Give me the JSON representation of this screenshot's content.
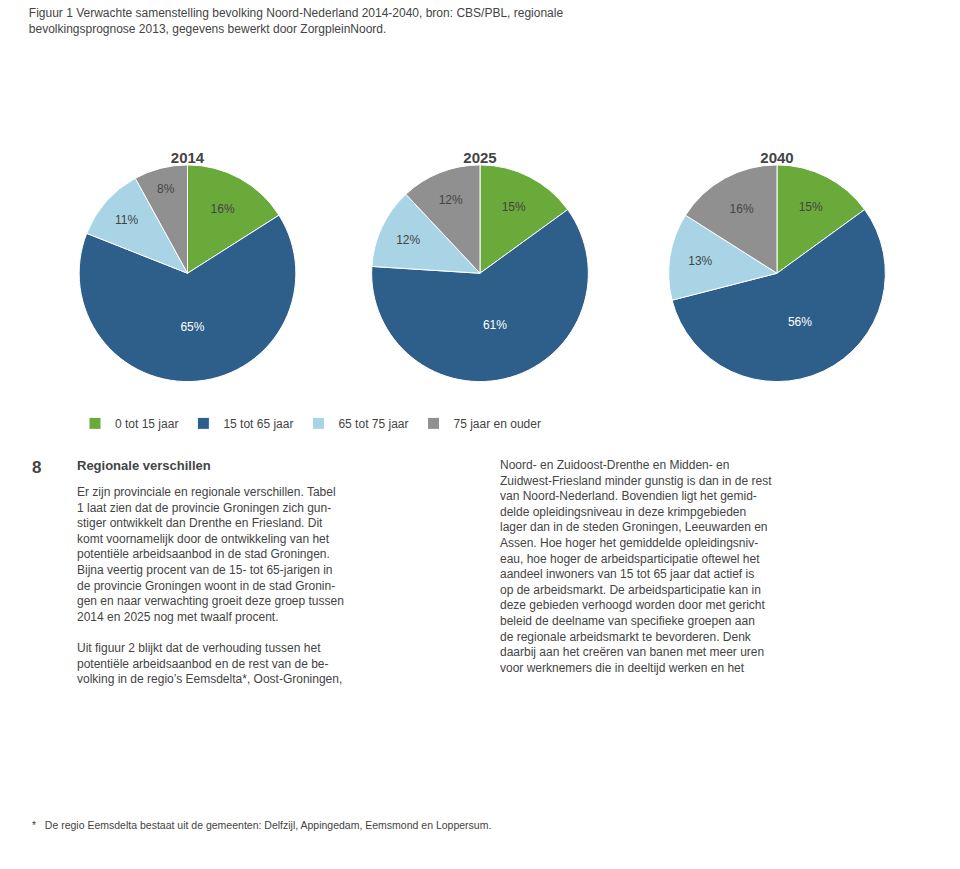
{
  "title": "Figuur 1",
  "subtitle": "Verwachte samenstelling bevolking Noord-Nederland 2014-2040, bron: CBS/PBL, regionale\nbevolkingsprognose 2013, gegevens bewerkt door ZorgpleinNoord.",
  "annotations": [
    "8",
    "Regionale verschillen",
    "Er zijn provinciale en regionale verschillen. Tabel\n1 laat zien dat de provincie Groningen zich gun-\nstiger ontwikkelt dan Drenthe en Friesland. Dit\nkomt voornamelijk door de ontwikkeling van het\npotentiële arbeidsaanbod in de stad Groningen.\nBijna veertig procent van de 15- tot 65-jarigen in\nde provincie Groningen woont in de stad Gronin-\ngen en naar verwachting groeit deze groep tussen\n2014 en 2025 nog met twaalf procent.\n\nUit figuur 2 blijkt dat de verhouding tussen het\npotentiële arbeidsaanbod en de rest van de be-\nvolking in de regio’s Eemsdelta*, Oost-Groningen,",
    "Noord- en Zuidoost-Drenthe en Midden- en\nZuidwest-Friesland minder gunstig is dan in de rest\nvan Noord-Nederland. Bovendien ligt het gemid-\ndelde opleidingsniveau in deze krimpgebieden\nlager dan in de steden Groningen, Leeuwarden en\nAssen. Hoe hoger het gemiddelde opleidingsniv-\neau, hoe hoger de arbeidsparticipatie oftewel het\naandeel inwoners van 15 tot 65 jaar dat actief is\nop de arbeidsmarkt. De arbeidsparticipatie kan in\ndeze gebieden verhoogd worden door met gericht\nbeleid de deelname van specifieke groepen aan\nde regionale arbeidsmarkt te bevorderen. Denk\ndaarbij aan het creëren van banen met meer uren\nvoor werknemers die in deeltijd werken en het",
    "*   De regio Eemsdelta bestaat uit de gemeenten: Delfzijl, Appingedam, Eemsmond en Loppersum."
  ],
  "chart_data": [
    {
      "type": "pie",
      "title": "2014",
      "categories": [
        "0 tot 15 jaar",
        "15 tot 65 jaar",
        "65 tot 75 jaar",
        "75 jaar en ouder"
      ],
      "values": [
        16,
        65,
        11,
        8
      ],
      "value_labels": [
        "16%",
        "65%",
        "11%",
        "8%"
      ],
      "colors": [
        "#6aaa3a",
        "#2e5f8a",
        "#a8d4e6",
        "#909090"
      ],
      "data_labels": true,
      "legend": "bottom"
    },
    {
      "type": "pie",
      "title": "2025",
      "categories": [
        "0 tot 15 jaar",
        "15 tot 65 jaar",
        "65 tot 75 jaar",
        "75 jaar en ouder"
      ],
      "values": [
        15,
        61,
        12,
        12
      ],
      "value_labels": [
        "15%",
        "61%",
        "12%",
        "12%"
      ],
      "colors": [
        "#6aaa3a",
        "#2e5f8a",
        "#a8d4e6",
        "#909090"
      ],
      "data_labels": true,
      "legend": "bottom"
    },
    {
      "type": "pie",
      "title": "2040",
      "categories": [
        "0 tot 15 jaar",
        "15 tot 65 jaar",
        "65 tot 75 jaar",
        "75 jaar en ouder"
      ],
      "values": [
        15,
        56,
        13,
        16
      ],
      "value_labels": [
        "15%",
        "56%",
        "13%",
        "16%"
      ],
      "colors": [
        "#6aaa3a",
        "#2e5f8a",
        "#a8d4e6",
        "#909090"
      ],
      "data_labels": true,
      "legend": "bottom"
    }
  ]
}
